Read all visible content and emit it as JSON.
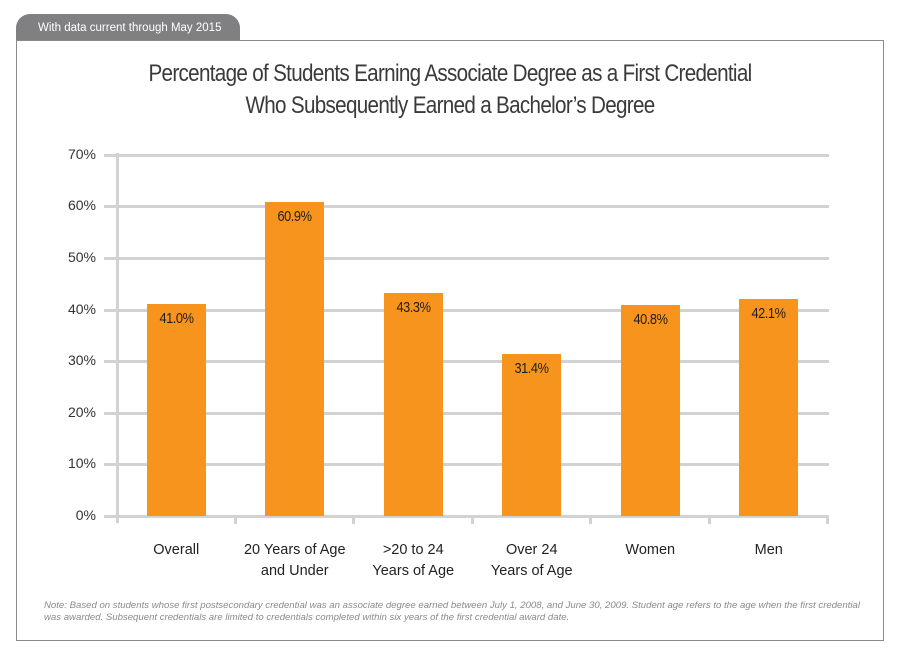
{
  "header": {
    "tab_label": "With data current through May 2015"
  },
  "title": {
    "line1": "Percentage of Students Earning Associate Degree as a First Credential",
    "line2": "Who Subsequently Earned a Bachelor’s Degree"
  },
  "y_axis": {
    "ticks": [
      "0%",
      "10%",
      "20%",
      "30%",
      "40%",
      "50%",
      "60%",
      "70%"
    ]
  },
  "bars": [
    {
      "category_line1": "Overall",
      "category_line2": "",
      "value": 41.0,
      "label": "41.0%"
    },
    {
      "category_line1": "20 Years of Age",
      "category_line2": "and Under",
      "value": 60.9,
      "label": "60.9%"
    },
    {
      "category_line1": ">20 to 24",
      "category_line2": "Years of Age",
      "value": 43.3,
      "label": "43.3%"
    },
    {
      "category_line1": "Over 24",
      "category_line2": "Years of Age",
      "value": 31.4,
      "label": "31.4%"
    },
    {
      "category_line1": "Women",
      "category_line2": "",
      "value": 40.8,
      "label": "40.8%"
    },
    {
      "category_line1": "Men",
      "category_line2": "",
      "value": 42.1,
      "label": "42.1%"
    }
  ],
  "colors": {
    "bar": "#f7941d",
    "gridline": "#d2d2d2",
    "tab": "#808083"
  },
  "note": "Note: Based on students whose first postsecondary credential was an associate degree earned between July 1, 2008, and June 30, 2009. Student age refers to the age when the first credential was awarded. Subsequent credentials are limited to credentials completed within six years of the first credential award date.",
  "chart_data": {
    "type": "bar",
    "title": "Percentage of Students Earning Associate Degree as a First Credential Who Subsequently Earned a Bachelor’s Degree",
    "categories": [
      "Overall",
      "20 Years of Age and Under",
      ">20 to 24 Years of Age",
      "Over 24 Years of Age",
      "Women",
      "Men"
    ],
    "values": [
      41.0,
      60.9,
      43.3,
      31.4,
      40.8,
      42.1
    ],
    "data_labels": [
      "41.0%",
      "60.9%",
      "43.3%",
      "31.4%",
      "40.8%",
      "42.1%"
    ],
    "xlabel": "",
    "ylabel": "",
    "ylim": [
      0,
      70
    ],
    "y_tick_step": 10,
    "y_tick_format": "percent",
    "grid": true,
    "legend": null,
    "annotations": [
      "With data current through May 2015"
    ]
  }
}
